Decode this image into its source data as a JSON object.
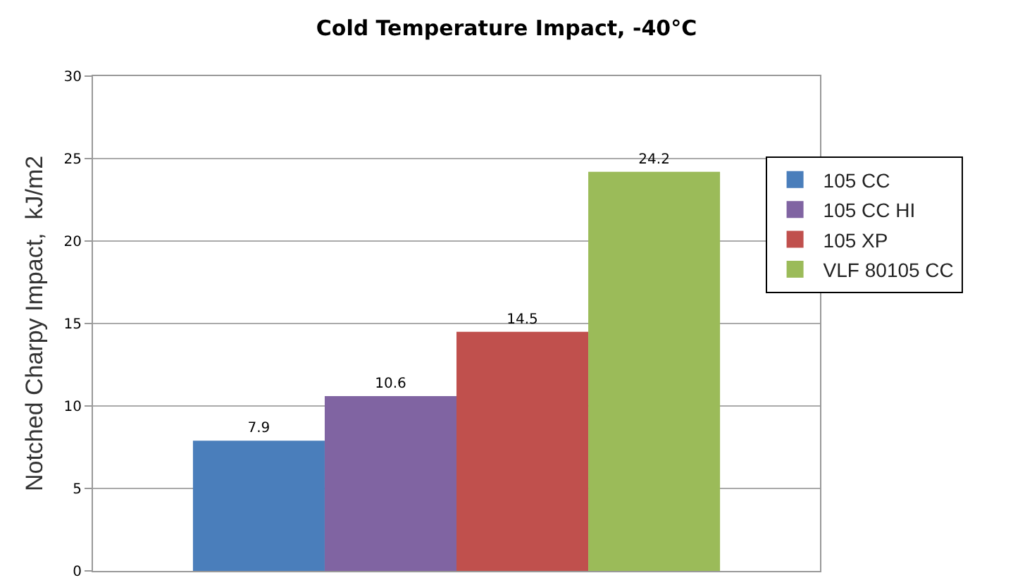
{
  "chart_data": {
    "type": "bar",
    "title": "Cold Temperature Impact, -40°C",
    "ylabel": "Notched Charpy Impact,  kJ/m2",
    "categories": [
      null
    ],
    "series": [
      {
        "name": "105 CC",
        "color": "#4a7ebb",
        "values": [
          7.9
        ]
      },
      {
        "name": "105 CC HI",
        "color": "#8064a2",
        "values": [
          10.6
        ]
      },
      {
        "name": "105 XP",
        "color": "#c0504d",
        "values": [
          14.5
        ]
      },
      {
        "name": "VLF 80105 CC",
        "color": "#9bbb59",
        "values": [
          24.2
        ]
      }
    ],
    "ylim": [
      0,
      30
    ],
    "yticks": [
      0,
      5,
      10,
      15,
      20,
      25,
      30
    ],
    "grid": "y",
    "legend": "right",
    "data_labels": true
  }
}
